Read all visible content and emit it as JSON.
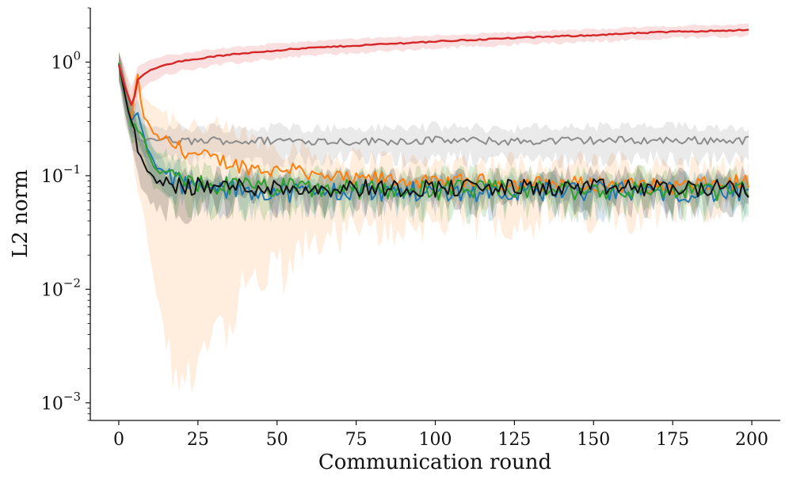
{
  "chart_data": {
    "type": "line",
    "title": "",
    "xlabel": "Communication round",
    "ylabel": "L2 norm",
    "yscale": "log",
    "xlim": [
      -9,
      209
    ],
    "ylim": [
      0.0007,
      3.0
    ],
    "x_ticks": [
      0,
      25,
      50,
      75,
      100,
      125,
      150,
      175,
      200
    ],
    "x_tick_labels": [
      "0",
      "25",
      "50",
      "75",
      "100",
      "125",
      "150",
      "175",
      "200"
    ],
    "y_ticks": [
      0.001,
      0.01,
      0.1,
      1
    ],
    "y_tick_labels": [
      {
        "base": "10",
        "exp": "−3"
      },
      {
        "base": "10",
        "exp": "−2"
      },
      {
        "base": "10",
        "exp": "−1"
      },
      {
        "base": "10",
        "exp": "0"
      }
    ],
    "grid": false,
    "legend": "none",
    "series": [
      {
        "name": "red",
        "color": "#d62728",
        "x": [
          0,
          2,
          4,
          5,
          6,
          8,
          10,
          15,
          20,
          30,
          40,
          50,
          60,
          75,
          100,
          125,
          150,
          175,
          199
        ],
        "values": [
          0.95,
          0.6,
          0.42,
          0.5,
          0.7,
          0.78,
          0.85,
          0.96,
          1.02,
          1.12,
          1.2,
          1.27,
          1.33,
          1.4,
          1.52,
          1.63,
          1.73,
          1.85,
          1.92
        ],
        "band_upper": [
          1.25,
          0.85,
          0.6,
          0.72,
          0.92,
          0.98,
          1.05,
          1.14,
          1.2,
          1.3,
          1.38,
          1.45,
          1.52,
          1.6,
          1.72,
          1.84,
          1.95,
          2.08,
          2.15
        ],
        "band_lower": [
          0.7,
          0.42,
          0.3,
          0.34,
          0.52,
          0.6,
          0.66,
          0.78,
          0.84,
          0.93,
          1.0,
          1.08,
          1.14,
          1.2,
          1.32,
          1.43,
          1.52,
          1.63,
          1.7
        ]
      },
      {
        "name": "gray",
        "color": "#8c8c8c",
        "x": [
          0,
          2,
          4,
          6,
          8,
          10,
          15,
          20,
          30,
          40,
          50,
          75,
          100,
          125,
          150,
          175,
          199
        ],
        "values": [
          0.95,
          0.45,
          0.25,
          0.21,
          0.2,
          0.21,
          0.205,
          0.2,
          0.205,
          0.2,
          0.205,
          0.2,
          0.205,
          0.2,
          0.205,
          0.205,
          0.205
        ],
        "band_upper": [
          1.25,
          0.65,
          0.36,
          0.3,
          0.28,
          0.27,
          0.27,
          0.26,
          0.27,
          0.26,
          0.27,
          0.26,
          0.27,
          0.26,
          0.27,
          0.27,
          0.27
        ],
        "band_lower": [
          0.7,
          0.3,
          0.17,
          0.15,
          0.14,
          0.14,
          0.14,
          0.14,
          0.14,
          0.14,
          0.14,
          0.14,
          0.14,
          0.14,
          0.14,
          0.14,
          0.14
        ]
      },
      {
        "name": "orange",
        "color": "#ff7f0e",
        "x": [
          0,
          2,
          4,
          5,
          6,
          7,
          8,
          10,
          12,
          15,
          20,
          25,
          30,
          35,
          40,
          45,
          50,
          55,
          57,
          60,
          65,
          70,
          75,
          80,
          90,
          100,
          110,
          125,
          150,
          175,
          199
        ],
        "values": [
          0.95,
          0.5,
          0.3,
          0.55,
          0.75,
          0.45,
          0.33,
          0.26,
          0.22,
          0.2,
          0.17,
          0.15,
          0.14,
          0.13,
          0.12,
          0.115,
          0.11,
          0.12,
          0.13,
          0.1,
          0.095,
          0.095,
          0.09,
          0.095,
          0.09,
          0.085,
          0.09,
          0.085,
          0.085,
          0.08,
          0.088
        ],
        "band_upper": [
          1.25,
          0.8,
          0.5,
          0.75,
          0.78,
          0.6,
          0.5,
          0.45,
          0.4,
          0.35,
          0.3,
          0.28,
          0.26,
          0.24,
          0.22,
          0.2,
          0.18,
          0.18,
          0.18,
          0.16,
          0.15,
          0.14,
          0.14,
          0.14,
          0.13,
          0.13,
          0.13,
          0.13,
          0.13,
          0.12,
          0.12
        ],
        "band_lower": [
          0.7,
          0.3,
          0.2,
          0.1,
          0.08,
          0.06,
          0.04,
          0.02,
          0.008,
          0.004,
          0.0016,
          0.0025,
          0.006,
          0.004,
          0.012,
          0.01,
          0.018,
          0.015,
          0.02,
          0.025,
          0.03,
          0.03,
          0.035,
          0.03,
          0.035,
          0.04,
          0.04,
          0.04,
          0.045,
          0.05,
          0.05
        ],
        "band_spikes": [
          {
            "x": 17,
            "y": 0.0013
          },
          {
            "x": 23,
            "y": 0.0012
          },
          {
            "x": 29,
            "y": 0.0035
          },
          {
            "x": 37,
            "y": 0.005
          },
          {
            "x": 52,
            "y": 0.009
          }
        ]
      },
      {
        "name": "blue",
        "color": "#1f77b4",
        "x": [
          0,
          2,
          4,
          6,
          8,
          10,
          12,
          15,
          20,
          25,
          30,
          40,
          50,
          60,
          75,
          100,
          125,
          150,
          175,
          199
        ],
        "values": [
          0.95,
          0.5,
          0.3,
          0.35,
          0.22,
          0.15,
          0.12,
          0.1,
          0.085,
          0.08,
          0.075,
          0.075,
          0.072,
          0.072,
          0.073,
          0.072,
          0.073,
          0.073,
          0.072,
          0.07
        ],
        "band_upper": [
          1.25,
          0.7,
          0.42,
          0.45,
          0.3,
          0.2,
          0.16,
          0.13,
          0.11,
          0.1,
          0.095,
          0.092,
          0.09,
          0.09,
          0.09,
          0.09,
          0.09,
          0.09,
          0.09,
          0.09
        ],
        "band_lower": [
          0.7,
          0.35,
          0.2,
          0.22,
          0.14,
          0.1,
          0.08,
          0.07,
          0.06,
          0.058,
          0.056,
          0.055,
          0.054,
          0.054,
          0.055,
          0.055,
          0.055,
          0.055,
          0.055,
          0.055
        ]
      },
      {
        "name": "green",
        "color": "#2ca02c",
        "x": [
          0,
          2,
          4,
          6,
          8,
          10,
          12,
          15,
          20,
          25,
          30,
          40,
          50,
          60,
          75,
          100,
          125,
          150,
          175,
          199
        ],
        "values": [
          0.95,
          0.5,
          0.28,
          0.26,
          0.2,
          0.14,
          0.11,
          0.1,
          0.09,
          0.085,
          0.082,
          0.08,
          0.078,
          0.077,
          0.076,
          0.075,
          0.075,
          0.075,
          0.074,
          0.074
        ],
        "band_upper": [
          1.25,
          0.7,
          0.4,
          0.36,
          0.28,
          0.2,
          0.16,
          0.14,
          0.12,
          0.11,
          0.105,
          0.1,
          0.1,
          0.1,
          0.1,
          0.1,
          0.1,
          0.1,
          0.1,
          0.1
        ],
        "band_lower": [
          0.7,
          0.35,
          0.19,
          0.18,
          0.13,
          0.09,
          0.07,
          0.065,
          0.058,
          0.056,
          0.055,
          0.055,
          0.054,
          0.054,
          0.054,
          0.054,
          0.054,
          0.054,
          0.054,
          0.054
        ]
      },
      {
        "name": "black",
        "color": "#111111",
        "x": [
          0,
          2,
          4,
          5,
          6,
          8,
          10,
          12,
          15,
          20,
          25,
          30,
          40,
          50,
          60,
          75,
          100,
          125,
          150,
          175,
          199
        ],
        "values": [
          0.95,
          0.5,
          0.3,
          0.25,
          0.17,
          0.12,
          0.1,
          0.09,
          0.085,
          0.082,
          0.08,
          0.08,
          0.08,
          0.078,
          0.078,
          0.078,
          0.078,
          0.078,
          0.078,
          0.078,
          0.076
        ],
        "band_upper": [
          1.25,
          0.7,
          0.42,
          0.35,
          0.25,
          0.18,
          0.14,
          0.12,
          0.11,
          0.1,
          0.1,
          0.1,
          0.1,
          0.1,
          0.1,
          0.1,
          0.1,
          0.1,
          0.1,
          0.1,
          0.1
        ],
        "band_lower": [
          0.7,
          0.35,
          0.2,
          0.15,
          0.1,
          0.07,
          0.058,
          0.052,
          0.05,
          0.05,
          0.052,
          0.054,
          0.055,
          0.056,
          0.057,
          0.057,
          0.057,
          0.057,
          0.057,
          0.057,
          0.057
        ]
      }
    ]
  }
}
